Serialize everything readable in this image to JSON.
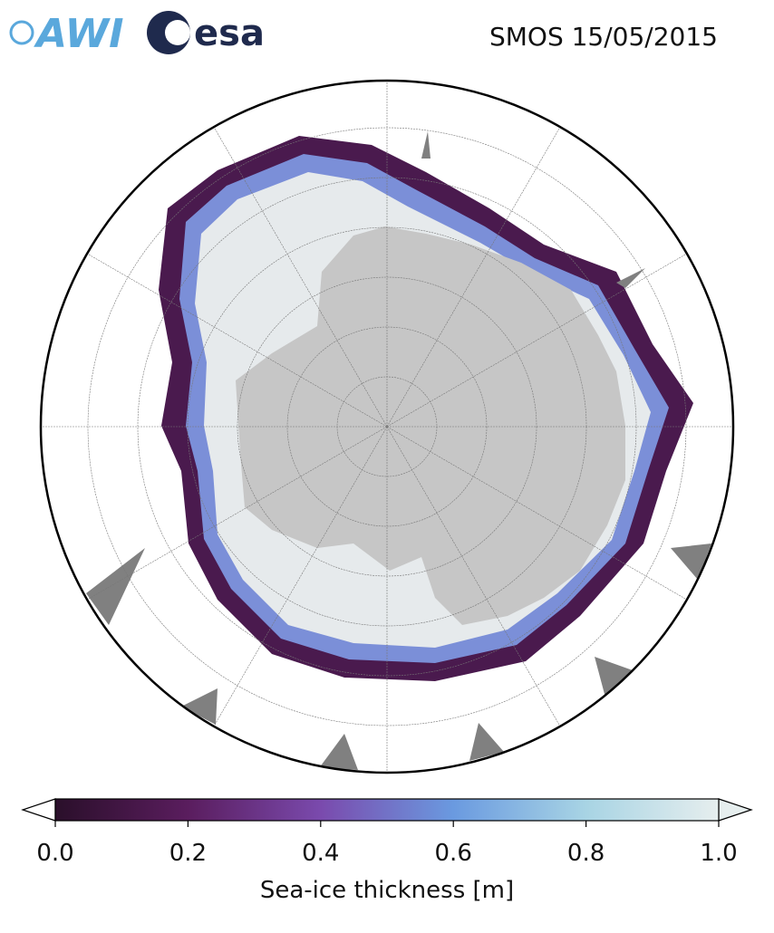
{
  "logos": {
    "awi": "AWI",
    "esa": "esa"
  },
  "title": "SMOS 15/05/2015",
  "colorbar": {
    "label": "Sea-ice thickness [m]",
    "lim": [
      0,
      1
    ],
    "ticks": [
      {
        "value": 0,
        "label": "0.0"
      },
      {
        "value": 0.2,
        "label": "0.2"
      },
      {
        "value": 0.4,
        "label": "0.4"
      },
      {
        "value": 0.6,
        "label": "0.6"
      },
      {
        "value": 0.8,
        "label": "0.8"
      },
      {
        "value": 1,
        "label": "1.0"
      }
    ]
  }
}
